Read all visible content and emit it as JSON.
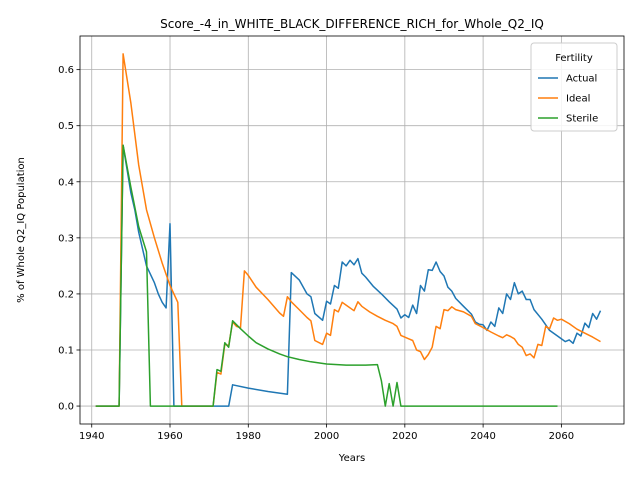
{
  "chart_data": {
    "type": "line",
    "title": "Score_-4_in_WHITE_BLACK_DIFFERENCE_RICH_for_Whole_Q2_IQ",
    "xlabel": "Years",
    "ylabel": "% of Whole Q2_IQ Population",
    "xlim": [
      1937,
      2076
    ],
    "ylim": [
      -0.032,
      0.66
    ],
    "xticks": [
      1940,
      1960,
      1980,
      2000,
      2020,
      2040,
      2060
    ],
    "yticks": [
      0.0,
      0.1,
      0.2,
      0.3,
      0.4,
      0.5,
      0.6
    ],
    "xtick_labels": [
      "1940",
      "1960",
      "1980",
      "2000",
      "2020",
      "2040",
      "2060"
    ],
    "ytick_labels": [
      "0.0",
      "0.1",
      "0.2",
      "0.3",
      "0.4",
      "0.5",
      "0.6"
    ],
    "grid": true,
    "legend": {
      "title": "Fertility",
      "position": "top-right"
    },
    "series": [
      {
        "name": "Actual",
        "color": "#1f77b4",
        "points": [
          [
            1941,
            0
          ],
          [
            1947,
            0
          ],
          [
            1948,
            0.465
          ],
          [
            1950,
            0.38
          ],
          [
            1951,
            0.35
          ],
          [
            1952,
            0.31
          ],
          [
            1953,
            0.28
          ],
          [
            1954,
            0.25
          ],
          [
            1956,
            0.22
          ],
          [
            1957,
            0.2
          ],
          [
            1958,
            0.185
          ],
          [
            1959,
            0.175
          ],
          [
            1960,
            0.325
          ],
          [
            1961,
            0
          ],
          [
            1964,
            0
          ],
          [
            1971,
            0
          ],
          [
            1975,
            0
          ],
          [
            1976,
            0.038
          ],
          [
            1980,
            0.032
          ],
          [
            1985,
            0.026
          ],
          [
            1990,
            0.021
          ],
          [
            1991,
            0.238
          ],
          [
            1993,
            0.225
          ],
          [
            1995,
            0.2
          ],
          [
            1996,
            0.195
          ],
          [
            1997,
            0.165
          ],
          [
            1999,
            0.153
          ],
          [
            2000,
            0.187
          ],
          [
            2001,
            0.182
          ],
          [
            2002,
            0.215
          ],
          [
            2003,
            0.21
          ],
          [
            2004,
            0.257
          ],
          [
            2005,
            0.25
          ],
          [
            2006,
            0.26
          ],
          [
            2007,
            0.252
          ],
          [
            2008,
            0.263
          ],
          [
            2009,
            0.237
          ],
          [
            2010,
            0.23
          ],
          [
            2012,
            0.213
          ],
          [
            2014,
            0.2
          ],
          [
            2016,
            0.186
          ],
          [
            2018,
            0.173
          ],
          [
            2019,
            0.157
          ],
          [
            2020,
            0.163
          ],
          [
            2021,
            0.158
          ],
          [
            2022,
            0.18
          ],
          [
            2023,
            0.165
          ],
          [
            2024,
            0.215
          ],
          [
            2025,
            0.205
          ],
          [
            2026,
            0.243
          ],
          [
            2027,
            0.242
          ],
          [
            2028,
            0.257
          ],
          [
            2029,
            0.24
          ],
          [
            2030,
            0.232
          ],
          [
            2031,
            0.212
          ],
          [
            2032,
            0.205
          ],
          [
            2033,
            0.192
          ],
          [
            2035,
            0.178
          ],
          [
            2037,
            0.164
          ],
          [
            2038,
            0.15
          ],
          [
            2039,
            0.146
          ],
          [
            2040,
            0.145
          ],
          [
            2041,
            0.135
          ],
          [
            2042,
            0.15
          ],
          [
            2043,
            0.142
          ],
          [
            2044,
            0.175
          ],
          [
            2045,
            0.165
          ],
          [
            2046,
            0.2
          ],
          [
            2047,
            0.19
          ],
          [
            2048,
            0.22
          ],
          [
            2049,
            0.2
          ],
          [
            2050,
            0.205
          ],
          [
            2051,
            0.19
          ],
          [
            2052,
            0.19
          ],
          [
            2053,
            0.172
          ],
          [
            2055,
            0.155
          ],
          [
            2057,
            0.135
          ],
          [
            2059,
            0.125
          ],
          [
            2061,
            0.115
          ],
          [
            2062,
            0.118
          ],
          [
            2063,
            0.112
          ],
          [
            2064,
            0.13
          ],
          [
            2065,
            0.125
          ],
          [
            2066,
            0.148
          ],
          [
            2067,
            0.14
          ],
          [
            2068,
            0.165
          ],
          [
            2069,
            0.155
          ],
          [
            2070,
            0.17
          ]
        ]
      },
      {
        "name": "Ideal",
        "color": "#ff7f0e",
        "points": [
          [
            1941,
            0
          ],
          [
            1947,
            0
          ],
          [
            1948,
            0.628
          ],
          [
            1950,
            0.54
          ],
          [
            1952,
            0.43
          ],
          [
            1954,
            0.35
          ],
          [
            1956,
            0.3
          ],
          [
            1958,
            0.255
          ],
          [
            1960,
            0.215
          ],
          [
            1962,
            0.185
          ],
          [
            1963,
            0
          ],
          [
            1964,
            0
          ],
          [
            1971,
            0
          ],
          [
            1972,
            0.06
          ],
          [
            1973,
            0.057
          ],
          [
            1974,
            0.11
          ],
          [
            1975,
            0.108
          ],
          [
            1976,
            0.15
          ],
          [
            1977,
            0.142
          ],
          [
            1978,
            0.14
          ],
          [
            1979,
            0.241
          ],
          [
            1980,
            0.233
          ],
          [
            1982,
            0.212
          ],
          [
            1985,
            0.19
          ],
          [
            1988,
            0.166
          ],
          [
            1989,
            0.16
          ],
          [
            1990,
            0.195
          ],
          [
            1991,
            0.186
          ],
          [
            1993,
            0.172
          ],
          [
            1995,
            0.158
          ],
          [
            1996,
            0.152
          ],
          [
            1997,
            0.117
          ],
          [
            1999,
            0.11
          ],
          [
            2000,
            0.13
          ],
          [
            2001,
            0.126
          ],
          [
            2002,
            0.172
          ],
          [
            2003,
            0.168
          ],
          [
            2004,
            0.185
          ],
          [
            2005,
            0.18
          ],
          [
            2007,
            0.17
          ],
          [
            2008,
            0.186
          ],
          [
            2009,
            0.178
          ],
          [
            2011,
            0.168
          ],
          [
            2013,
            0.16
          ],
          [
            2015,
            0.153
          ],
          [
            2017,
            0.147
          ],
          [
            2018,
            0.142
          ],
          [
            2019,
            0.126
          ],
          [
            2021,
            0.12
          ],
          [
            2022,
            0.117
          ],
          [
            2023,
            0.1
          ],
          [
            2024,
            0.097
          ],
          [
            2025,
            0.083
          ],
          [
            2026,
            0.092
          ],
          [
            2027,
            0.105
          ],
          [
            2028,
            0.142
          ],
          [
            2029,
            0.138
          ],
          [
            2030,
            0.172
          ],
          [
            2031,
            0.17
          ],
          [
            2032,
            0.177
          ],
          [
            2033,
            0.172
          ],
          [
            2035,
            0.168
          ],
          [
            2037,
            0.16
          ],
          [
            2038,
            0.147
          ],
          [
            2040,
            0.14
          ],
          [
            2042,
            0.132
          ],
          [
            2044,
            0.125
          ],
          [
            2045,
            0.122
          ],
          [
            2046,
            0.127
          ],
          [
            2047,
            0.124
          ],
          [
            2048,
            0.12
          ],
          [
            2049,
            0.11
          ],
          [
            2050,
            0.105
          ],
          [
            2051,
            0.09
          ],
          [
            2052,
            0.093
          ],
          [
            2053,
            0.086
          ],
          [
            2054,
            0.11
          ],
          [
            2055,
            0.108
          ],
          [
            2056,
            0.142
          ],
          [
            2057,
            0.138
          ],
          [
            2058,
            0.157
          ],
          [
            2059,
            0.153
          ],
          [
            2060,
            0.155
          ],
          [
            2062,
            0.147
          ],
          [
            2064,
            0.137
          ],
          [
            2066,
            0.13
          ],
          [
            2068,
            0.123
          ],
          [
            2070,
            0.115
          ]
        ]
      },
      {
        "name": "Sterile",
        "color": "#2ca02c",
        "points": [
          [
            1941,
            0
          ],
          [
            1947,
            0
          ],
          [
            1948,
            0.465
          ],
          [
            1950,
            0.39
          ],
          [
            1951,
            0.355
          ],
          [
            1952,
            0.32
          ],
          [
            1954,
            0.275
          ],
          [
            1955,
            0
          ],
          [
            1960,
            0
          ],
          [
            1971,
            0
          ],
          [
            1972,
            0.065
          ],
          [
            1973,
            0.062
          ],
          [
            1974,
            0.113
          ],
          [
            1975,
            0.105
          ],
          [
            1976,
            0.152
          ],
          [
            1978,
            0.138
          ],
          [
            1980,
            0.125
          ],
          [
            1982,
            0.113
          ],
          [
            1985,
            0.102
          ],
          [
            1988,
            0.093
          ],
          [
            1990,
            0.088
          ],
          [
            1993,
            0.083
          ],
          [
            1996,
            0.079
          ],
          [
            2000,
            0.075
          ],
          [
            2005,
            0.073
          ],
          [
            2010,
            0.073
          ],
          [
            2013,
            0.074
          ],
          [
            2014,
            0.045
          ],
          [
            2015,
            0
          ],
          [
            2016,
            0.04
          ],
          [
            2017,
            0
          ],
          [
            2018,
            0.042
          ],
          [
            2019,
            0
          ],
          [
            2020,
            0
          ],
          [
            2030,
            0
          ],
          [
            2040,
            0
          ],
          [
            2050,
            0
          ],
          [
            2059,
            0
          ]
        ]
      }
    ]
  }
}
